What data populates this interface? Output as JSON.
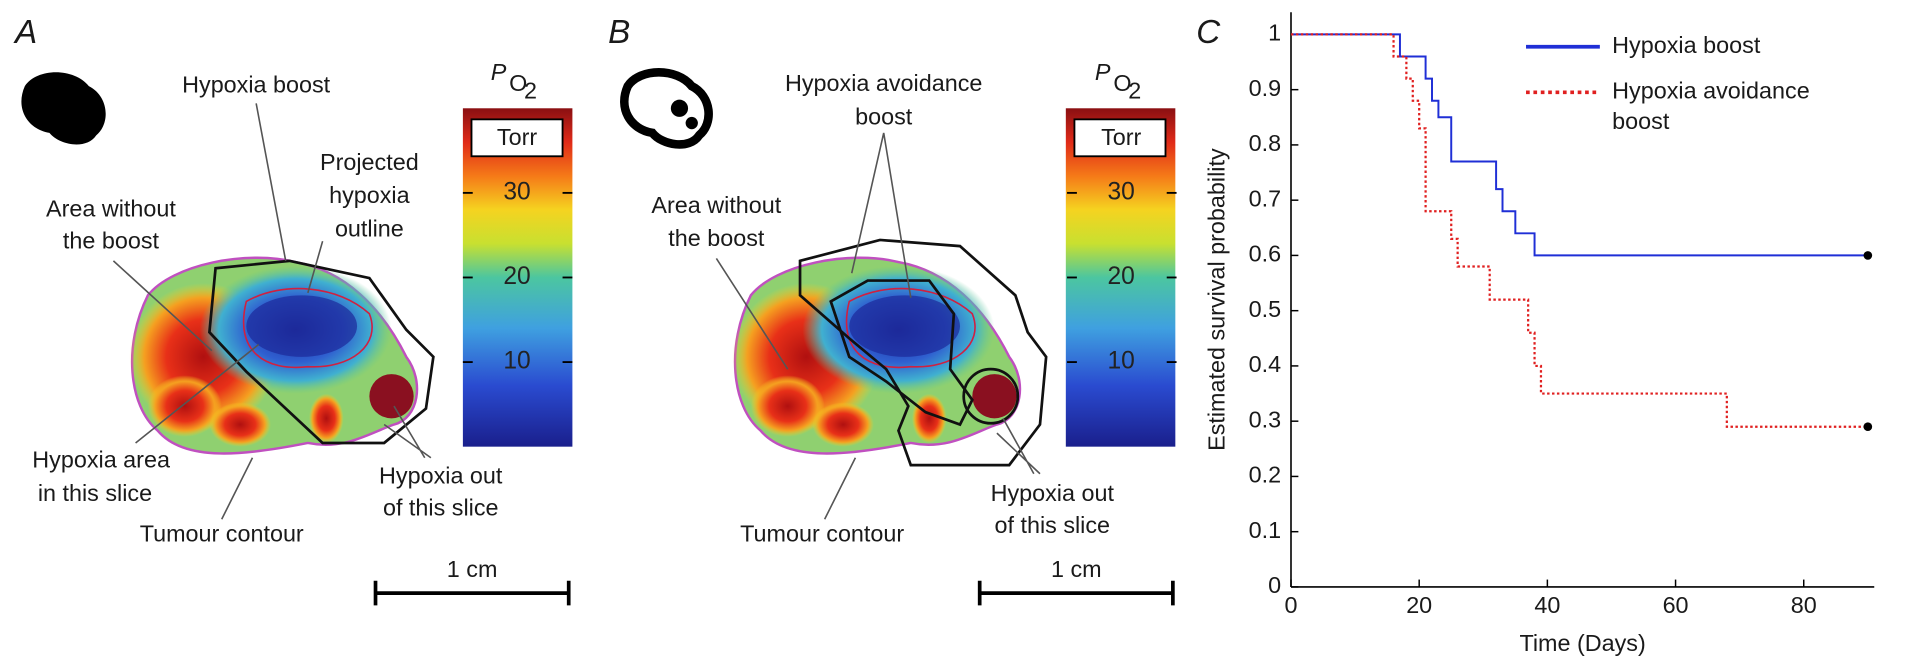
{
  "panels": [
    {
      "label": "A",
      "annotations": [
        {
          "lines": [
            "Hypoxia boost"
          ]
        },
        {
          "lines": [
            "Projected",
            "hypoxia",
            "outline"
          ]
        },
        {
          "lines": [
            "Area without",
            "the boost"
          ]
        },
        {
          "lines": [
            "Hypoxia area",
            "in this slice"
          ]
        },
        {
          "lines": [
            "Tumour contour"
          ]
        },
        {
          "lines": [
            "Hypoxia out",
            "of this slice"
          ]
        }
      ],
      "colorbar": {
        "symbol": "P",
        "subscript": "O",
        "subsubscript": "2",
        "unit": "Torr",
        "range": [
          0,
          40
        ],
        "ticks": [
          10,
          20,
          30
        ]
      },
      "scale_bar": "1 cm"
    },
    {
      "label": "B",
      "annotations": [
        {
          "lines": [
            "Hypoxia avoidance",
            "boost"
          ]
        },
        {
          "lines": [
            "Area without",
            "the boost"
          ]
        },
        {
          "lines": [
            "Tumour contour"
          ]
        },
        {
          "lines": [
            "Hypoxia out",
            "of this slice"
          ]
        }
      ],
      "colorbar": {
        "symbol": "P",
        "subscript": "O",
        "subsubscript": "2",
        "unit": "Torr",
        "range": [
          0,
          40
        ],
        "ticks": [
          10,
          20,
          30
        ]
      },
      "scale_bar": "1 cm"
    }
  ],
  "chart_data": {
    "type": "step",
    "panel_label": "C",
    "x_label": "Time (Days)",
    "y_label": "Estimated survival probability",
    "xlim": [
      0,
      91
    ],
    "ylim": [
      0,
      1.04
    ],
    "xticks": [
      0,
      20,
      40,
      60,
      80
    ],
    "yticks": [
      0,
      0.1,
      0.2,
      0.3,
      0.4,
      0.5,
      0.6,
      0.7,
      0.8,
      0.9,
      1
    ],
    "legend": "upper right",
    "series": [
      {
        "name": "Hypoxia boost",
        "color": "#1f2fd6",
        "linestyle": "solid",
        "x": [
          0,
          17,
          21,
          22,
          23,
          25,
          32,
          33,
          35,
          37,
          38,
          90
        ],
        "values": [
          1,
          0.96,
          0.92,
          0.88,
          0.85,
          0.77,
          0.72,
          0.68,
          0.64,
          0.64,
          0.6,
          0.6
        ]
      },
      {
        "name": "Hypoxia avoidance boost",
        "color": "#e02020",
        "linestyle": "dotted",
        "x": [
          0,
          16,
          18,
          19,
          20,
          21,
          25,
          26,
          31,
          37,
          38,
          39,
          68,
          90
        ],
        "values": [
          1,
          0.96,
          0.92,
          0.88,
          0.83,
          0.68,
          0.63,
          0.58,
          0.52,
          0.46,
          0.4,
          0.35,
          0.29,
          0.29
        ]
      }
    ]
  }
}
